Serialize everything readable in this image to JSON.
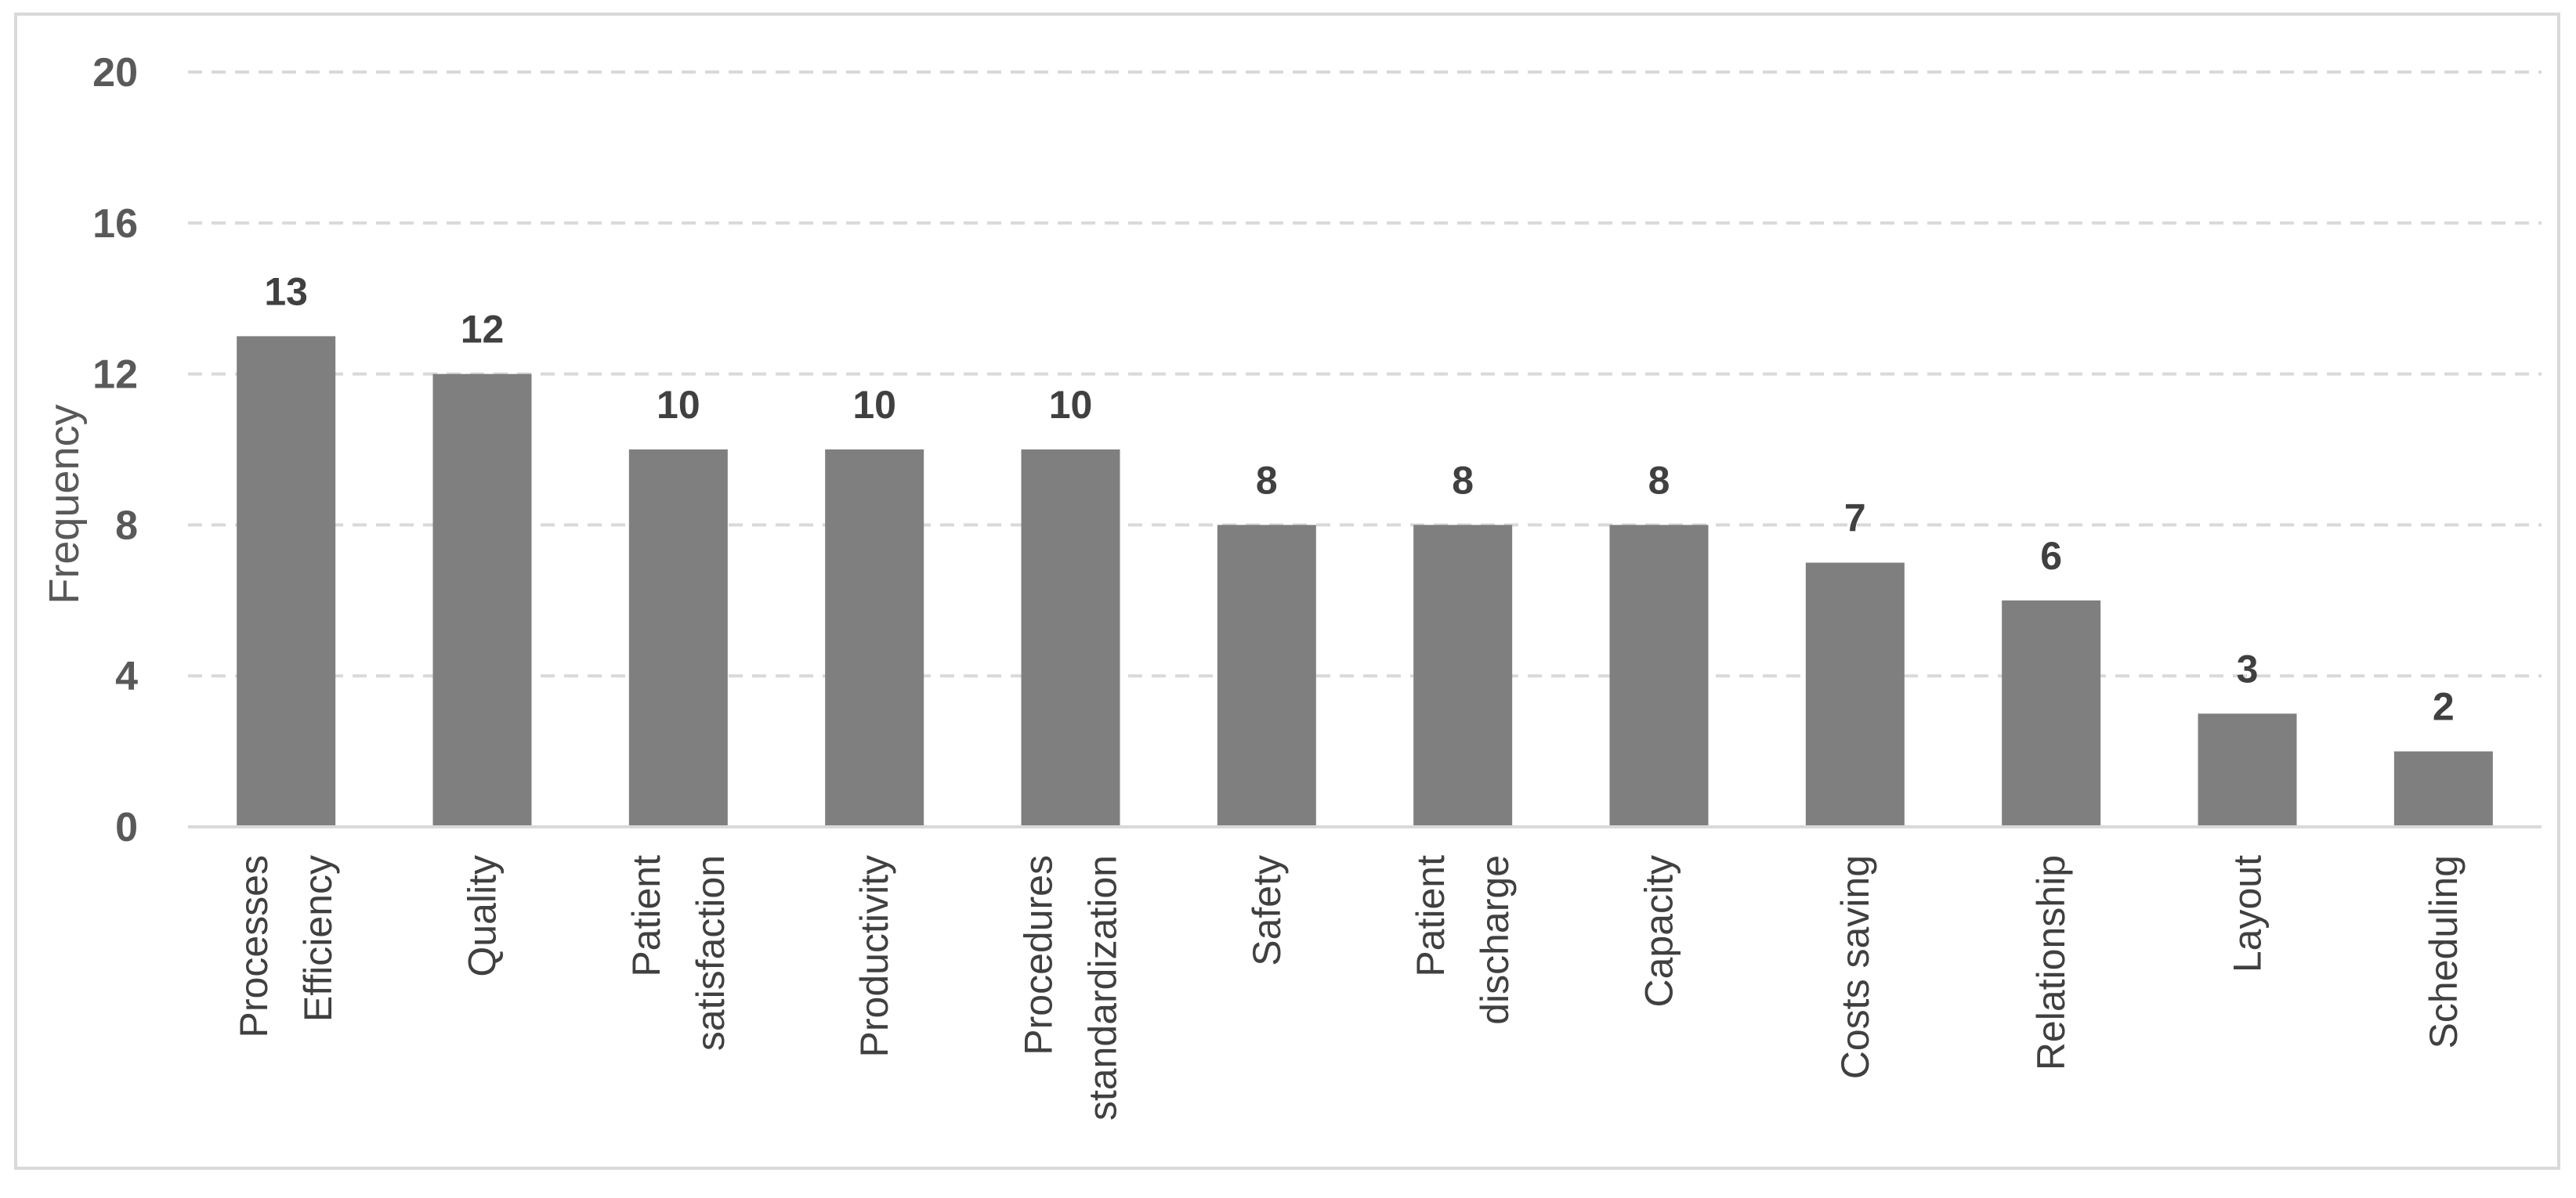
{
  "chart_data": {
    "type": "bar",
    "categories": [
      [
        "Processes",
        "Efficiency"
      ],
      [
        "Quality"
      ],
      [
        "Patient",
        "satisfaction"
      ],
      [
        "Productivity"
      ],
      [
        "Procedures",
        "standardization"
      ],
      [
        "Safety"
      ],
      [
        "Patient",
        "discharge"
      ],
      [
        "Capacity"
      ],
      [
        "Costs saving"
      ],
      [
        "Relationship"
      ],
      [
        "Layout"
      ],
      [
        "Scheduling"
      ]
    ],
    "values": [
      13,
      12,
      10,
      10,
      10,
      8,
      8,
      8,
      7,
      6,
      3,
      2
    ],
    "xlabel": "",
    "ylabel": "Frequency",
    "ylim": [
      0,
      20
    ],
    "yticks": [
      0,
      4,
      8,
      12,
      16,
      20
    ],
    "grid": true,
    "colors": {
      "bar": "#7f7f7f",
      "grid": "#d9d9d9",
      "axis": "#d9d9d9"
    }
  }
}
